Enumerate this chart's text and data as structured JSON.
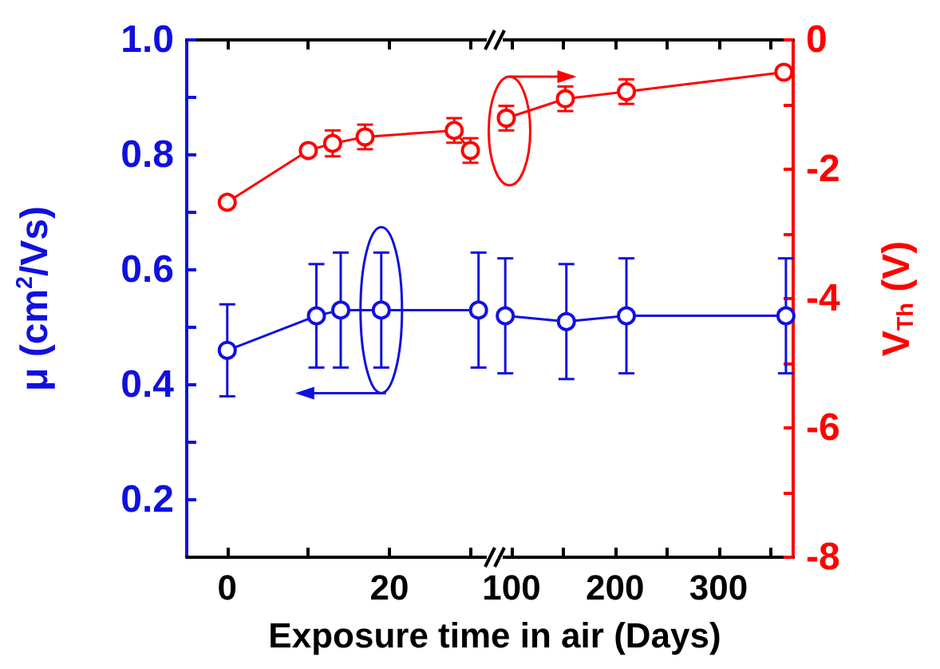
{
  "chart_data": [
    {
      "type": "line",
      "xlabel": "Exposure time in air (Days)",
      "ylabel": "μ (cm$^{2}$/Vs)",
      "xlim": [
        -5,
        33
      ],
      "xticks": [
        0,
        {
          "value": 10,
          "label": null
        },
        20,
        {
          "value": 30,
          "label": null
        }
      ],
      "ylim": [
        0.1,
        1.0
      ],
      "yticks": [
        0.2,
        {
          "value": 0.3,
          "label": null
        },
        0.4,
        {
          "value": 0.5,
          "label": null
        },
        0.6,
        {
          "value": 0.7,
          "label": null
        },
        0.8,
        {
          "value": 0.9,
          "label": null
        },
        {
          "value": 1.0,
          "label": "1.0"
        }
      ],
      "y2lim": [
        -8,
        0
      ],
      "marker": "circle",
      "grid": false,
      "series": [
        {
          "color": "#1010e0",
          "x": [
            0,
            11,
            14,
            19,
            31
          ],
          "values": [
            0.46,
            0.52,
            0.53,
            0.53,
            0.53
          ],
          "errors": [
            0.08,
            0.09,
            0.1,
            0.1,
            0.1
          ]
        },
        {
          "color": "#ff0000",
          "axis": "y2",
          "x": [
            0,
            10,
            13,
            17,
            28,
            30
          ],
          "values": [
            -2.51,
            -1.71,
            -1.6,
            -1.5,
            -1.4,
            -1.71
          ],
          "errors": [
            0.06,
            0.06,
            0.2,
            0.19,
            0.19,
            0.19
          ]
        }
      ]
    },
    {
      "type": "line",
      "y2label": "V$_{Th}$ (V)",
      "xlim": [
        90,
        372
      ],
      "xticks": [
        100,
        {
          "value": 150,
          "label": null
        },
        200,
        {
          "value": 250,
          "label": null
        },
        300,
        {
          "value": 350,
          "label": null
        }
      ],
      "ylim": [
        0.1,
        1.0
      ],
      "y2lim": [
        -8,
        0
      ],
      "y2ticks": [
        -8,
        {
          "value": -7,
          "label": null
        },
        -6,
        {
          "value": -5,
          "label": null
        },
        -4,
        {
          "value": -3,
          "label": null
        },
        -2,
        {
          "value": -1,
          "label": null
        },
        0
      ],
      "marker": "circle",
      "grid": false,
      "series": [
        {
          "color": "#1010e0",
          "x": [
            94,
            153,
            211,
            365
          ],
          "values": [
            0.52,
            0.51,
            0.52,
            0.52
          ],
          "errors": [
            0.1,
            0.1,
            0.1,
            0.1
          ]
        },
        {
          "color": "#ff0000",
          "axis": "y2",
          "x": [
            95,
            152,
            211,
            363
          ],
          "values": [
            -1.21,
            -0.91,
            -0.8,
            -0.5
          ],
          "errors": [
            0.19,
            0.19,
            0.19,
            0.07
          ]
        }
      ]
    }
  ]
}
